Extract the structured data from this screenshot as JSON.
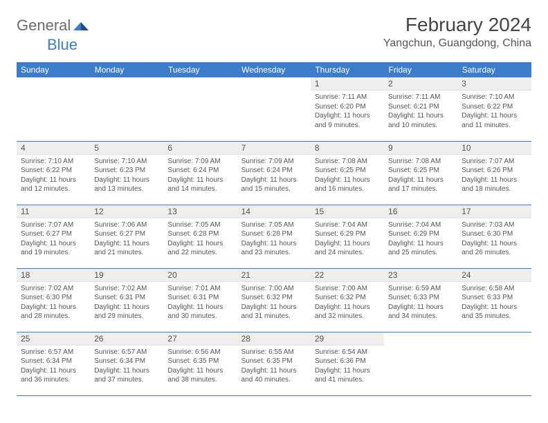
{
  "logo": {
    "text1": "General",
    "text2": "Blue"
  },
  "title": "February 2024",
  "location": "Yangchun, Guangdong, China",
  "colors": {
    "header_bg": "#3d7cc9",
    "header_text": "#ffffff",
    "daynum_bg": "#eeeeee",
    "text": "#555555",
    "border": "#3d7cc9",
    "logo_gray": "#6b6b6b",
    "logo_blue": "#3d7cc9"
  },
  "weekdays": [
    "Sunday",
    "Monday",
    "Tuesday",
    "Wednesday",
    "Thursday",
    "Friday",
    "Saturday"
  ],
  "weeks": [
    [
      null,
      null,
      null,
      null,
      {
        "n": "1",
        "sr": "7:11 AM",
        "ss": "6:20 PM",
        "dl": "11 hours and 9 minutes."
      },
      {
        "n": "2",
        "sr": "7:11 AM",
        "ss": "6:21 PM",
        "dl": "11 hours and 10 minutes."
      },
      {
        "n": "3",
        "sr": "7:10 AM",
        "ss": "6:22 PM",
        "dl": "11 hours and 11 minutes."
      }
    ],
    [
      {
        "n": "4",
        "sr": "7:10 AM",
        "ss": "6:22 PM",
        "dl": "11 hours and 12 minutes."
      },
      {
        "n": "5",
        "sr": "7:10 AM",
        "ss": "6:23 PM",
        "dl": "11 hours and 13 minutes."
      },
      {
        "n": "6",
        "sr": "7:09 AM",
        "ss": "6:24 PM",
        "dl": "11 hours and 14 minutes."
      },
      {
        "n": "7",
        "sr": "7:09 AM",
        "ss": "6:24 PM",
        "dl": "11 hours and 15 minutes."
      },
      {
        "n": "8",
        "sr": "7:08 AM",
        "ss": "6:25 PM",
        "dl": "11 hours and 16 minutes."
      },
      {
        "n": "9",
        "sr": "7:08 AM",
        "ss": "6:25 PM",
        "dl": "11 hours and 17 minutes."
      },
      {
        "n": "10",
        "sr": "7:07 AM",
        "ss": "6:26 PM",
        "dl": "11 hours and 18 minutes."
      }
    ],
    [
      {
        "n": "11",
        "sr": "7:07 AM",
        "ss": "6:27 PM",
        "dl": "11 hours and 19 minutes."
      },
      {
        "n": "12",
        "sr": "7:06 AM",
        "ss": "6:27 PM",
        "dl": "11 hours and 21 minutes."
      },
      {
        "n": "13",
        "sr": "7:05 AM",
        "ss": "6:28 PM",
        "dl": "11 hours and 22 minutes."
      },
      {
        "n": "14",
        "sr": "7:05 AM",
        "ss": "6:28 PM",
        "dl": "11 hours and 23 minutes."
      },
      {
        "n": "15",
        "sr": "7:04 AM",
        "ss": "6:29 PM",
        "dl": "11 hours and 24 minutes."
      },
      {
        "n": "16",
        "sr": "7:04 AM",
        "ss": "6:29 PM",
        "dl": "11 hours and 25 minutes."
      },
      {
        "n": "17",
        "sr": "7:03 AM",
        "ss": "6:30 PM",
        "dl": "11 hours and 26 minutes."
      }
    ],
    [
      {
        "n": "18",
        "sr": "7:02 AM",
        "ss": "6:30 PM",
        "dl": "11 hours and 28 minutes."
      },
      {
        "n": "19",
        "sr": "7:02 AM",
        "ss": "6:31 PM",
        "dl": "11 hours and 29 minutes."
      },
      {
        "n": "20",
        "sr": "7:01 AM",
        "ss": "6:31 PM",
        "dl": "11 hours and 30 minutes."
      },
      {
        "n": "21",
        "sr": "7:00 AM",
        "ss": "6:32 PM",
        "dl": "11 hours and 31 minutes."
      },
      {
        "n": "22",
        "sr": "7:00 AM",
        "ss": "6:32 PM",
        "dl": "11 hours and 32 minutes."
      },
      {
        "n": "23",
        "sr": "6:59 AM",
        "ss": "6:33 PM",
        "dl": "11 hours and 34 minutes."
      },
      {
        "n": "24",
        "sr": "6:58 AM",
        "ss": "6:33 PM",
        "dl": "11 hours and 35 minutes."
      }
    ],
    [
      {
        "n": "25",
        "sr": "6:57 AM",
        "ss": "6:34 PM",
        "dl": "11 hours and 36 minutes."
      },
      {
        "n": "26",
        "sr": "6:57 AM",
        "ss": "6:34 PM",
        "dl": "11 hours and 37 minutes."
      },
      {
        "n": "27",
        "sr": "6:56 AM",
        "ss": "6:35 PM",
        "dl": "11 hours and 38 minutes."
      },
      {
        "n": "28",
        "sr": "6:55 AM",
        "ss": "6:35 PM",
        "dl": "11 hours and 40 minutes."
      },
      {
        "n": "29",
        "sr": "6:54 AM",
        "ss": "6:36 PM",
        "dl": "11 hours and 41 minutes."
      },
      null,
      null
    ]
  ],
  "labels": {
    "sunrise": "Sunrise:",
    "sunset": "Sunset:",
    "daylight": "Daylight:"
  }
}
